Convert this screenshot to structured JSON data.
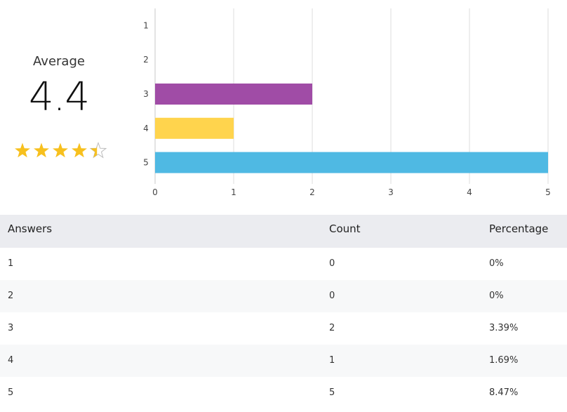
{
  "summary": {
    "label": "Average",
    "value": "4.4",
    "rating": 4.4,
    "max_stars": 5,
    "star_color": "#f7c01e",
    "star_empty_color": "#bdbdbd"
  },
  "chart_data": {
    "type": "bar",
    "orientation": "horizontal",
    "categories": [
      "1",
      "2",
      "3",
      "4",
      "5"
    ],
    "values": [
      0,
      0,
      2,
      1,
      5
    ],
    "colors": [
      "#4fb9e3",
      "#4fb9e3",
      "#a04ca6",
      "#ffd44d",
      "#4fb9e3"
    ],
    "xlim": [
      0,
      5
    ],
    "xticks": [
      "0",
      "1",
      "2",
      "3",
      "4",
      "5"
    ],
    "grid": true,
    "title": "",
    "xlabel": "",
    "ylabel": ""
  },
  "table": {
    "headers": [
      "Answers",
      "Count",
      "Percentage"
    ],
    "rows": [
      [
        "1",
        "0",
        "0%"
      ],
      [
        "2",
        "0",
        "0%"
      ],
      [
        "3",
        "2",
        "3.39%"
      ],
      [
        "4",
        "1",
        "1.69%"
      ],
      [
        "5",
        "5",
        "8.47%"
      ]
    ]
  }
}
